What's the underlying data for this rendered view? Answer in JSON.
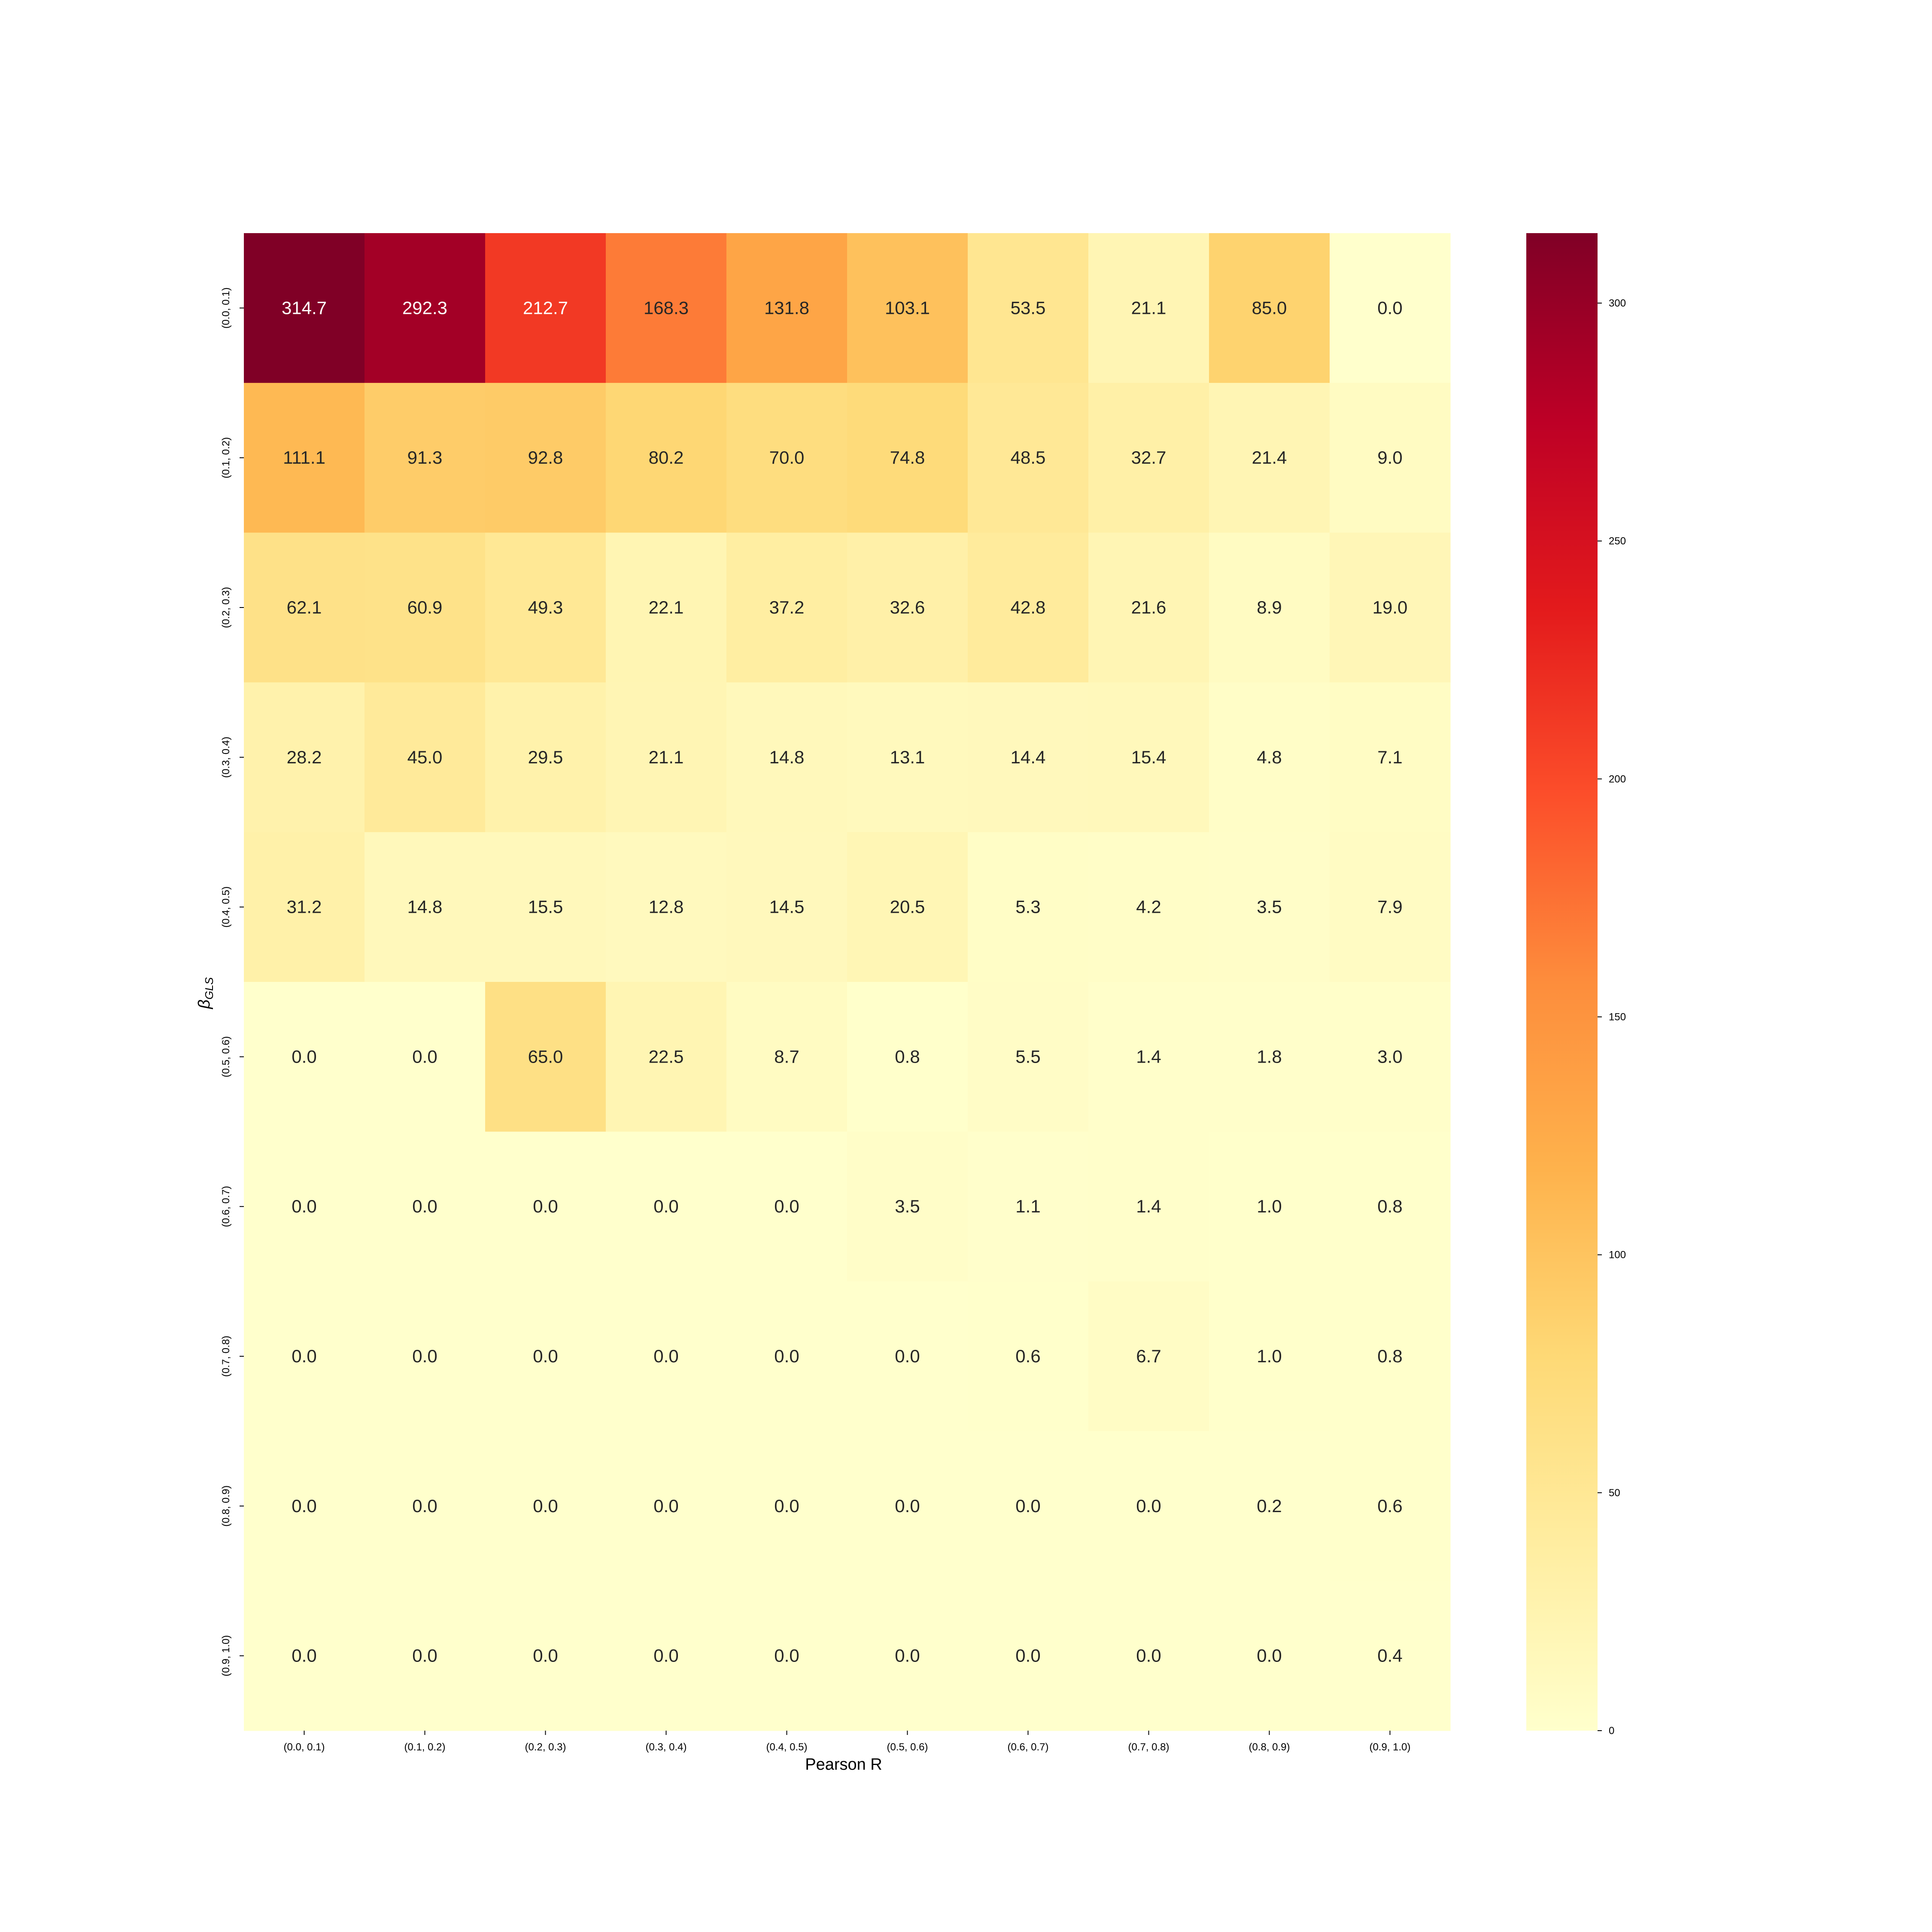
{
  "chart_data": {
    "type": "heatmap",
    "title": "",
    "xlabel": "Pearson R",
    "ylabel_base": "β",
    "ylabel_sub": "GLS",
    "x_categories": [
      "(0.0, 0.1)",
      "(0.1, 0.2)",
      "(0.2, 0.3)",
      "(0.3, 0.4)",
      "(0.4, 0.5)",
      "(0.5, 0.6)",
      "(0.6, 0.7)",
      "(0.7, 0.8)",
      "(0.8, 0.9)",
      "(0.9, 1.0)"
    ],
    "y_categories": [
      "(0.0, 0.1)",
      "(0.1, 0.2)",
      "(0.2, 0.3)",
      "(0.3, 0.4)",
      "(0.4, 0.5)",
      "(0.5, 0.6)",
      "(0.6, 0.7)",
      "(0.7, 0.8)",
      "(0.8, 0.9)",
      "(0.9, 1.0)"
    ],
    "values": [
      [
        314.7,
        292.3,
        212.7,
        168.3,
        131.8,
        103.1,
        53.5,
        21.1,
        85.0,
        0.0
      ],
      [
        111.1,
        91.3,
        92.8,
        80.2,
        70.0,
        74.8,
        48.5,
        32.7,
        21.4,
        9.0
      ],
      [
        62.1,
        60.9,
        49.3,
        22.1,
        37.2,
        32.6,
        42.8,
        21.6,
        8.9,
        19.0
      ],
      [
        28.2,
        45.0,
        29.5,
        21.1,
        14.8,
        13.1,
        14.4,
        15.4,
        4.8,
        7.1
      ],
      [
        31.2,
        14.8,
        15.5,
        12.8,
        14.5,
        20.5,
        5.3,
        4.2,
        3.5,
        7.9
      ],
      [
        0.0,
        0.0,
        65.0,
        22.5,
        8.7,
        0.8,
        5.5,
        1.4,
        1.8,
        3.0
      ],
      [
        0.0,
        0.0,
        0.0,
        0.0,
        0.0,
        3.5,
        1.1,
        1.4,
        1.0,
        0.8
      ],
      [
        0.0,
        0.0,
        0.0,
        0.0,
        0.0,
        0.0,
        0.6,
        6.7,
        1.0,
        0.8
      ],
      [
        0.0,
        0.0,
        0.0,
        0.0,
        0.0,
        0.0,
        0.0,
        0.0,
        0.2,
        0.6
      ],
      [
        0.0,
        0.0,
        0.0,
        0.0,
        0.0,
        0.0,
        0.0,
        0.0,
        0.0,
        0.4
      ]
    ],
    "colormap": "YlOrRd",
    "color_range": [
      0,
      314.7
    ],
    "colorbar_ticks": [
      0,
      50,
      100,
      150,
      200,
      250,
      300
    ],
    "legend_position": "right",
    "grid": false
  }
}
